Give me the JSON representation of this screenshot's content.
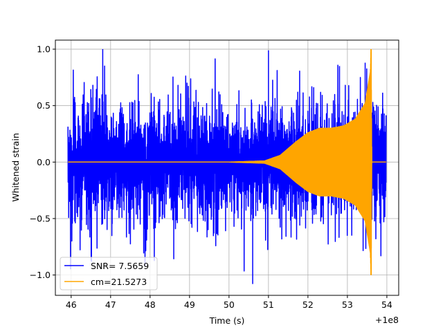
{
  "chart_data": {
    "type": "line",
    "title": "",
    "xlabel": "Time (s)",
    "ylabel": "Whitened strain",
    "x_offset_label": "+1e8",
    "xlim": [
      45.6,
      54.3
    ],
    "ylim": [
      -1.18,
      1.08
    ],
    "x_ticks": [
      46,
      47,
      48,
      49,
      50,
      51,
      52,
      53,
      54
    ],
    "y_ticks": [
      -1.0,
      -0.5,
      0.0,
      0.5,
      1.0
    ],
    "x_tick_labels": [
      "46",
      "47",
      "48",
      "49",
      "50",
      "51",
      "52",
      "53",
      "54"
    ],
    "y_tick_labels": [
      "−1.0",
      "−0.5",
      "0.0",
      "0.5",
      "1.0"
    ],
    "grid": true,
    "legend_position": "lower-left",
    "series": [
      {
        "name": "SNR= 7.5659",
        "color": "#0000ff",
        "kind": "noise",
        "x_range": [
          45.92,
          53.98
        ],
        "typical_amplitude": 0.55,
        "peak_max": 1.0,
        "peak_min": -1.08
      },
      {
        "name": "cm=21.5273",
        "color": "#ffa500",
        "kind": "chirp",
        "x_range": [
          45.92,
          53.98
        ],
        "merger_time": 53.6,
        "envelope": [
          {
            "x": 45.92,
            "y": 0.0
          },
          {
            "x": 50.0,
            "y": 0.0
          },
          {
            "x": 50.9,
            "y": 0.01
          },
          {
            "x": 51.3,
            "y": 0.06
          },
          {
            "x": 51.7,
            "y": 0.18
          },
          {
            "x": 52.0,
            "y": 0.26
          },
          {
            "x": 52.3,
            "y": 0.3
          },
          {
            "x": 52.6,
            "y": 0.3
          },
          {
            "x": 52.9,
            "y": 0.32
          },
          {
            "x": 53.2,
            "y": 0.38
          },
          {
            "x": 53.45,
            "y": 0.52
          },
          {
            "x": 53.58,
            "y": 0.8
          },
          {
            "x": 53.6,
            "y": 1.0
          },
          {
            "x": 53.62,
            "y": 0.0
          },
          {
            "x": 53.98,
            "y": 0.0
          }
        ],
        "peak_min": -1.0
      }
    ]
  },
  "legend": {
    "items": [
      {
        "label": "SNR= 7.5659",
        "color": "#0000ff"
      },
      {
        "label": "cm=21.5273",
        "color": "#ffa500"
      }
    ]
  }
}
